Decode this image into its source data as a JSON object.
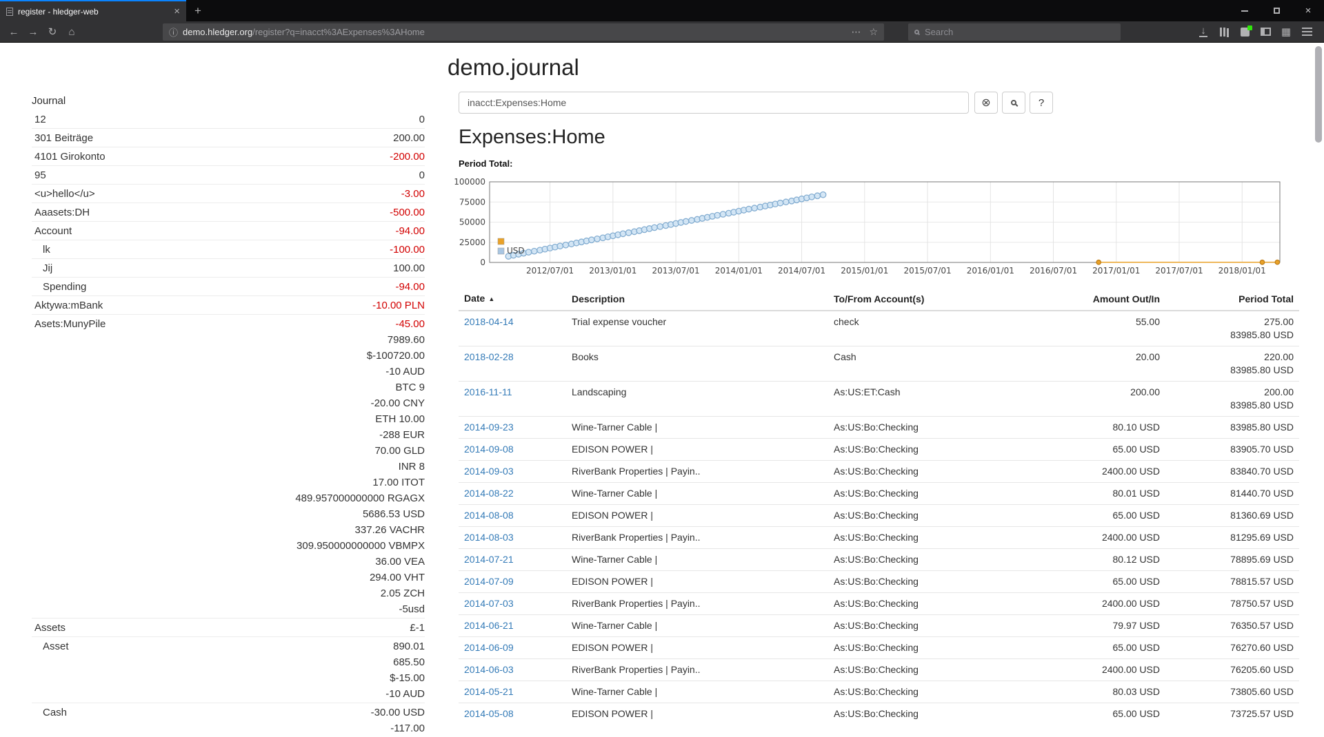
{
  "colors": {
    "negative": "#d20000",
    "link": "#337ab7",
    "tab_accent": "#0a84ff",
    "badge_green": "#30e60b"
  },
  "browser": {
    "tab_title": "register - hledger-web",
    "url_host": "demo.hledger.org",
    "url_path": "/register?q=inacct%3AExpenses%3AHome",
    "search_placeholder": "Search",
    "icons": {
      "back": "←",
      "forward": "→",
      "reload": "↻",
      "home": "⌂",
      "info": "ⓘ",
      "dots": "⋯",
      "star": "☆",
      "grid": "▦",
      "plus": "+",
      "close": "×",
      "download": "↓"
    }
  },
  "page": {
    "title": "demo.journal",
    "query": "inacct:Expenses:Home",
    "clear_icon": "⊗",
    "help_label": "?",
    "heading": "Expenses:Home",
    "period_total_label": "Period Total:"
  },
  "sidebar": {
    "title": "Journal",
    "accounts": [
      {
        "name": "12",
        "depth": 1,
        "amounts": [
          {
            "text": "0",
            "neg": false
          }
        ]
      },
      {
        "name": "301 Beiträge",
        "depth": 1,
        "amounts": [
          {
            "text": "200.00",
            "neg": false
          }
        ]
      },
      {
        "name": "4101 Girokonto",
        "depth": 1,
        "amounts": [
          {
            "text": "-200.00",
            "neg": true
          }
        ]
      },
      {
        "name": "95",
        "depth": 1,
        "amounts": [
          {
            "text": "0",
            "neg": false
          }
        ]
      },
      {
        "name": "<u>hello</u>",
        "depth": 1,
        "amounts": [
          {
            "text": "-3.00",
            "neg": true
          }
        ]
      },
      {
        "name": "Aaasets:DH",
        "depth": 1,
        "amounts": [
          {
            "text": "-500.00",
            "neg": true
          }
        ]
      },
      {
        "name": "Account",
        "depth": 1,
        "amounts": [
          {
            "text": "-94.00",
            "neg": true
          }
        ]
      },
      {
        "name": "lk",
        "depth": 2,
        "amounts": [
          {
            "text": "-100.00",
            "neg": true
          }
        ]
      },
      {
        "name": "Jij",
        "depth": 2,
        "amounts": [
          {
            "text": "100.00",
            "neg": false
          }
        ]
      },
      {
        "name": "Spending",
        "depth": 2,
        "amounts": [
          {
            "text": "-94.00",
            "neg": true
          }
        ]
      },
      {
        "name": "Aktywa:mBank",
        "depth": 1,
        "amounts": [
          {
            "text": "-10.00 PLN",
            "neg": true
          }
        ]
      },
      {
        "name": "Asets:MunyPile",
        "depth": 1,
        "amounts": [
          {
            "text": "-45.00",
            "neg": true
          },
          {
            "text": "7989.60",
            "neg": false
          },
          {
            "text": "$-100720.00",
            "neg": false
          },
          {
            "text": "-10 AUD",
            "neg": false
          },
          {
            "text": "BTC 9",
            "neg": false
          },
          {
            "text": "-20.00 CNY",
            "neg": false
          },
          {
            "text": "ETH 10.00",
            "neg": false
          },
          {
            "text": "-288 EUR",
            "neg": false
          },
          {
            "text": "70.00 GLD",
            "neg": false
          },
          {
            "text": "INR 8",
            "neg": false
          },
          {
            "text": "17.00 ITOT",
            "neg": false
          },
          {
            "text": "489.957000000000 RGAGX",
            "neg": false
          },
          {
            "text": "5686.53 USD",
            "neg": false
          },
          {
            "text": "337.26 VACHR",
            "neg": false
          },
          {
            "text": "309.950000000000 VBMPX",
            "neg": false
          },
          {
            "text": "36.00 VEA",
            "neg": false
          },
          {
            "text": "294.00 VHT",
            "neg": false
          },
          {
            "text": "2.05 ZCH",
            "neg": false
          },
          {
            "text": "-5usd",
            "neg": false
          }
        ]
      },
      {
        "name": "Assets",
        "depth": 1,
        "amounts": [
          {
            "text": "£-1",
            "neg": false
          }
        ]
      },
      {
        "name": "Asset",
        "depth": 2,
        "amounts": [
          {
            "text": "890.01",
            "neg": false
          },
          {
            "text": "685.50",
            "neg": false
          },
          {
            "text": "$-15.00",
            "neg": false
          },
          {
            "text": "-10 AUD",
            "neg": false
          }
        ]
      },
      {
        "name": "Cash",
        "depth": 2,
        "amounts": [
          {
            "text": "-30.00 USD",
            "neg": false
          },
          {
            "text": "-117.00",
            "neg": false
          }
        ]
      }
    ]
  },
  "chart_data": {
    "type": "line",
    "title": "Period Total:",
    "xlim": [
      2012.02,
      2018.3
    ],
    "ylim": [
      0,
      100000
    ],
    "y_ticks": [
      0,
      25000,
      50000,
      75000,
      100000
    ],
    "x_tick_values": [
      2012.5,
      2013.0,
      2013.5,
      2014.0,
      2014.5,
      2015.0,
      2015.5,
      2016.0,
      2016.5,
      2017.0,
      2017.5,
      2018.0
    ],
    "x_ticks": [
      "2012/07/01",
      "2013/01/01",
      "2013/07/01",
      "2014/01/01",
      "2014/07/01",
      "2015/01/01",
      "2015/07/01",
      "2016/01/01",
      "2016/07/01",
      "2017/01/01",
      "2017/07/01",
      "2018/01/01"
    ],
    "grid": true,
    "legend_position": "inside-left",
    "legend": [
      {
        "label": "",
        "color": "#eaa228"
      },
      {
        "label": "USD",
        "color": "#a9c6e2"
      }
    ],
    "series": [
      {
        "name": "",
        "line_color": "#eaa228",
        "marker_fill": "#eaa228",
        "marker_stroke": "#bf7e17",
        "marker_r": 3.2,
        "dense": false,
        "x": [
          2016.86,
          2018.16,
          2018.28
        ],
        "values": [
          200,
          220,
          275
        ]
      },
      {
        "name": "USD",
        "line_color": "#bdd5e9",
        "marker_fill": "rgba(208,228,244,0.85)",
        "marker_stroke": "#83add1",
        "marker_r": 4.2,
        "dense": true,
        "x": [
          2012.17,
          2012.25,
          2012.33,
          2012.42,
          2012.5,
          2012.58,
          2012.67,
          2012.75,
          2012.83,
          2012.92,
          2013.0,
          2013.08,
          2013.17,
          2013.25,
          2013.33,
          2013.42,
          2013.5,
          2013.58,
          2013.67,
          2013.75,
          2013.83,
          2013.92,
          2014.0,
          2014.08,
          2014.17,
          2014.25,
          2014.33,
          2014.42,
          2014.5,
          2014.58,
          2014.67
        ],
        "values": [
          7600,
          10145,
          12690,
          15235,
          17780,
          20325,
          22870,
          25415,
          27960,
          30505,
          33050,
          35595,
          38140,
          40685,
          43230,
          45775,
          48320,
          50865,
          53410,
          55955,
          58500,
          61045,
          63590,
          66135,
          68680,
          71225,
          73725.57,
          76270.6,
          78815.57,
          81360.69,
          83985.8
        ]
      }
    ]
  },
  "register": {
    "sort_icon": "▲",
    "columns": [
      "Date",
      "Description",
      "To/From Account(s)",
      "Amount Out/In",
      "Period Total"
    ],
    "rows": [
      {
        "date": "2018-04-14",
        "description": "Trial expense voucher",
        "account": "check",
        "amount": "55.00",
        "total": [
          "275.00",
          "83985.80 USD"
        ]
      },
      {
        "date": "2018-02-28",
        "description": "Books",
        "account": "Cash",
        "amount": "20.00",
        "total": [
          "220.00",
          "83985.80 USD"
        ]
      },
      {
        "date": "2016-11-11",
        "description": "Landscaping",
        "account": "As:US:ET:Cash",
        "amount": "200.00",
        "total": [
          "200.00",
          "83985.80 USD"
        ]
      },
      {
        "date": "2014-09-23",
        "description": "Wine-Tarner Cable |",
        "account": "As:US:Bo:Checking",
        "amount": "80.10 USD",
        "total": [
          "83985.80 USD"
        ]
      },
      {
        "date": "2014-09-08",
        "description": "EDISON POWER |",
        "account": "As:US:Bo:Checking",
        "amount": "65.00 USD",
        "total": [
          "83905.70 USD"
        ]
      },
      {
        "date": "2014-09-03",
        "description": "RiverBank Properties | Payin..",
        "account": "As:US:Bo:Checking",
        "amount": "2400.00 USD",
        "total": [
          "83840.70 USD"
        ]
      },
      {
        "date": "2014-08-22",
        "description": "Wine-Tarner Cable |",
        "account": "As:US:Bo:Checking",
        "amount": "80.01 USD",
        "total": [
          "81440.70 USD"
        ]
      },
      {
        "date": "2014-08-08",
        "description": "EDISON POWER |",
        "account": "As:US:Bo:Checking",
        "amount": "65.00 USD",
        "total": [
          "81360.69 USD"
        ]
      },
      {
        "date": "2014-08-03",
        "description": "RiverBank Properties | Payin..",
        "account": "As:US:Bo:Checking",
        "amount": "2400.00 USD",
        "total": [
          "81295.69 USD"
        ]
      },
      {
        "date": "2014-07-21",
        "description": "Wine-Tarner Cable |",
        "account": "As:US:Bo:Checking",
        "amount": "80.12 USD",
        "total": [
          "78895.69 USD"
        ]
      },
      {
        "date": "2014-07-09",
        "description": "EDISON POWER |",
        "account": "As:US:Bo:Checking",
        "amount": "65.00 USD",
        "total": [
          "78815.57 USD"
        ]
      },
      {
        "date": "2014-07-03",
        "description": "RiverBank Properties | Payin..",
        "account": "As:US:Bo:Checking",
        "amount": "2400.00 USD",
        "total": [
          "78750.57 USD"
        ]
      },
      {
        "date": "2014-06-21",
        "description": "Wine-Tarner Cable |",
        "account": "As:US:Bo:Checking",
        "amount": "79.97 USD",
        "total": [
          "76350.57 USD"
        ]
      },
      {
        "date": "2014-06-09",
        "description": "EDISON POWER |",
        "account": "As:US:Bo:Checking",
        "amount": "65.00 USD",
        "total": [
          "76270.60 USD"
        ]
      },
      {
        "date": "2014-06-03",
        "description": "RiverBank Properties | Payin..",
        "account": "As:US:Bo:Checking",
        "amount": "2400.00 USD",
        "total": [
          "76205.60 USD"
        ]
      },
      {
        "date": "2014-05-21",
        "description": "Wine-Tarner Cable |",
        "account": "As:US:Bo:Checking",
        "amount": "80.03 USD",
        "total": [
          "73805.60 USD"
        ]
      },
      {
        "date": "2014-05-08",
        "description": "EDISON POWER |",
        "account": "As:US:Bo:Checking",
        "amount": "65.00 USD",
        "total": [
          "73725.57 USD"
        ]
      }
    ]
  }
}
